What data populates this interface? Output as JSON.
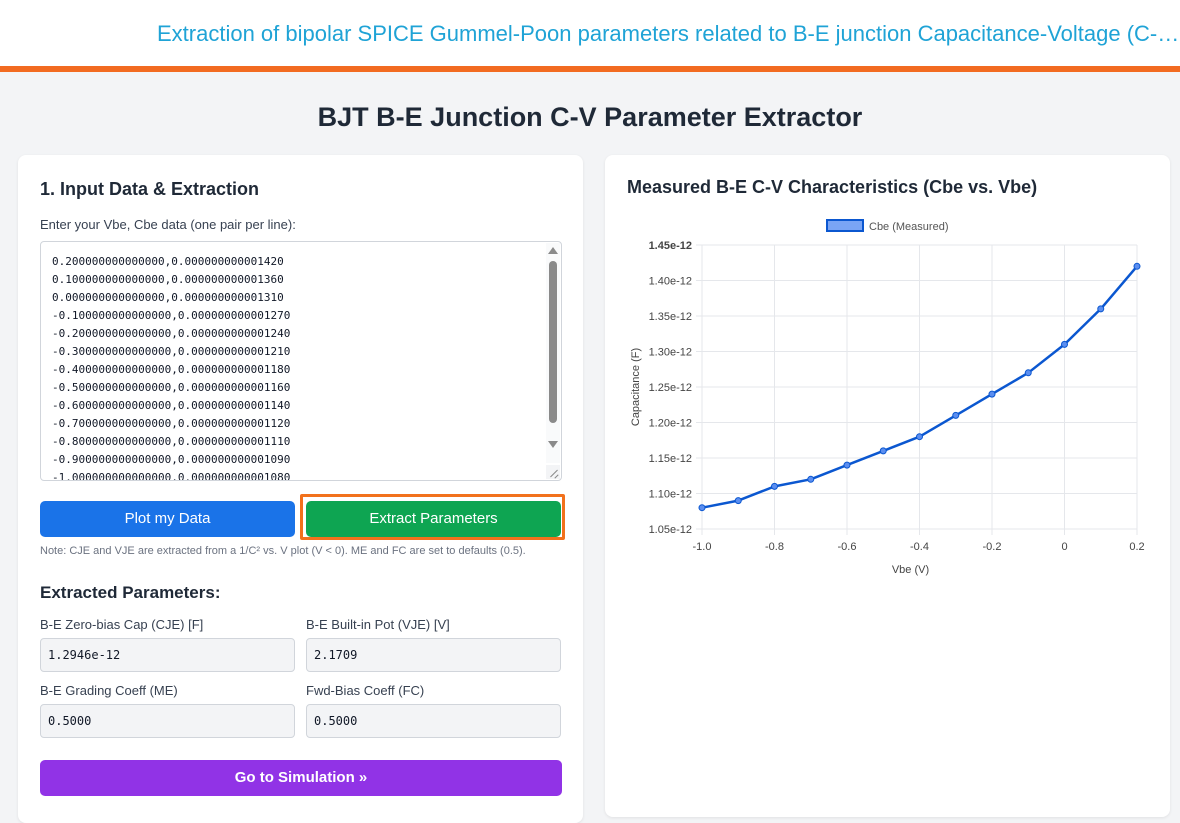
{
  "header": {
    "title": "Extraction of bipolar SPICE Gummel-Poon parameters related to B-E junction Capacitance-Voltage (C-V) characteristics"
  },
  "page": {
    "title": "BJT B-E Junction C-V Parameter Extractor"
  },
  "input_panel": {
    "heading": "1. Input Data & Extraction",
    "data_label": "Enter your Vbe, Cbe data (one pair per line):",
    "data_lines": [
      "0.200000000000000,0.000000000001420",
      "0.100000000000000,0.000000000001360",
      "0.000000000000000,0.000000000001310",
      "-0.100000000000000,0.000000000001270",
      "-0.200000000000000,0.000000000001240",
      "-0.300000000000000,0.000000000001210",
      "-0.400000000000000,0.000000000001180",
      "-0.500000000000000,0.000000000001160",
      "-0.600000000000000,0.000000000001140",
      "-0.700000000000000,0.000000000001120",
      "-0.800000000000000,0.000000000001110",
      "-0.900000000000000,0.000000000001090",
      "-1.000000000000000,0.000000000001080"
    ],
    "plot_button": "Plot my Data",
    "extract_button": "Extract Parameters",
    "note": "Note: CJE and VJE are extracted from a 1/C² vs. V plot (V < 0). ME and FC are set to defaults (0.5).",
    "colors": {
      "plot": "#1a73e8",
      "extract": "#0ea552",
      "highlight": "#f2711c",
      "sim": "#9133e6"
    }
  },
  "extracted": {
    "heading": "Extracted Parameters:",
    "cje": {
      "label": "B-E Zero-bias Cap (CJE) [F]",
      "value": "1.2946e-12"
    },
    "vje": {
      "label": "B-E Built-in Pot (VJE) [V]",
      "value": "2.1709"
    },
    "me": {
      "label": "B-E Grading Coeff (ME)",
      "value": "0.5000"
    },
    "fc": {
      "label": "Fwd-Bias Coeff (FC)",
      "value": "0.5000"
    },
    "sim_button": "Go to Simulation »"
  },
  "chart_panel": {
    "heading": "Measured B-E C-V Characteristics (Cbe vs. Vbe)"
  },
  "chart_data": {
    "type": "line",
    "x": [
      -1.0,
      -0.9,
      -0.8,
      -0.7,
      -0.6,
      -0.5,
      -0.4,
      -0.3,
      -0.2,
      -0.1,
      0.0,
      0.1,
      0.2
    ],
    "series": [
      {
        "name": "Cbe (Measured)",
        "values": [
          1.08e-12,
          1.09e-12,
          1.11e-12,
          1.12e-12,
          1.14e-12,
          1.16e-12,
          1.18e-12,
          1.21e-12,
          1.24e-12,
          1.27e-12,
          1.31e-12,
          1.36e-12,
          1.42e-12
        ],
        "color": "#0b57d0"
      }
    ],
    "xlabel": "Vbe (V)",
    "ylabel": "Capacitance (F)",
    "xlim": [
      -1.0,
      0.2
    ],
    "ylim": [
      1.05e-12,
      1.45e-12
    ],
    "xticks": [
      -1.0,
      -0.8,
      -0.6,
      -0.4,
      -0.2,
      0,
      0.2
    ],
    "xtick_labels": [
      "-1.0",
      "-0.8",
      "-0.6",
      "-0.4",
      "-0.2",
      "0",
      "0.2"
    ],
    "yticks": [
      1.05e-12,
      1.1e-12,
      1.15e-12,
      1.2e-12,
      1.25e-12,
      1.3e-12,
      1.35e-12,
      1.4e-12,
      1.45e-12
    ],
    "ytick_labels": [
      "1.05e-12",
      "1.10e-12",
      "1.15e-12",
      "1.20e-12",
      "1.25e-12",
      "1.30e-12",
      "1.35e-12",
      "1.40e-12",
      "1.45e-12"
    ],
    "grid": true,
    "legend": "top-center"
  }
}
